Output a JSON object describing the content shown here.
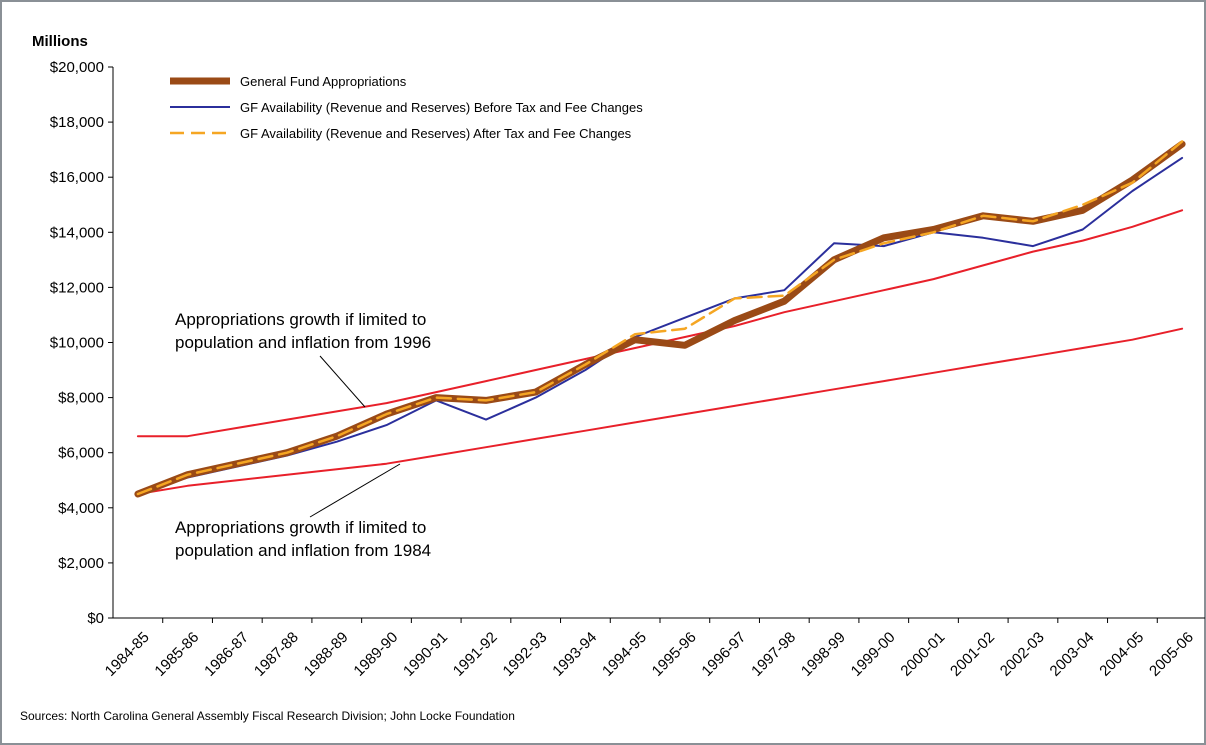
{
  "chart_data": {
    "type": "line",
    "y_label": "Millions",
    "source": "Sources: North Carolina General Assembly Fiscal Research Division; John Locke Foundation",
    "categories": [
      "1984-85",
      "1985-86",
      "1986-87",
      "1987-88",
      "1988-89",
      "1989-90",
      "1990-91",
      "1991-92",
      "1992-93",
      "1993-94",
      "1994-95",
      "1995-96",
      "1996-97",
      "1997-98",
      "1998-99",
      "1999-00",
      "2000-01",
      "2001-02",
      "2002-03",
      "2003-04",
      "2004-05",
      "2005-06"
    ],
    "series": [
      {
        "color": "#e8202a",
        "values": [
          6600,
          6600,
          6900,
          7200,
          7500,
          7800,
          8200,
          8600,
          9000,
          9400,
          9800,
          10200,
          10600,
          11100,
          11500,
          11900,
          12300,
          12800,
          13300,
          13700,
          14200,
          14800
        ]
      },
      {
        "color": "#e8202a",
        "values": [
          4500,
          4800,
          5000,
          5200,
          5400,
          5600,
          5900,
          6200,
          6500,
          6800,
          7100,
          7400,
          7700,
          8000,
          8300,
          8600,
          8900,
          9200,
          9500,
          9800,
          10100,
          10500
        ]
      },
      {
        "name": "GF Availability (Revenue and Reserves) Before Tax and Fee Changes",
        "color": "#2b2f9c",
        "values": [
          4500,
          5100,
          5500,
          5900,
          6400,
          7000,
          7900,
          7200,
          8000,
          9000,
          10200,
          10900,
          11600,
          11900,
          13600,
          13500,
          14000,
          13800,
          13500,
          14100,
          15500,
          16700
        ]
      },
      {
        "name": "General Fund Appropriations",
        "color": "#9a4a16",
        "values": [
          4500,
          5200,
          5600,
          6000,
          6600,
          7400,
          8000,
          7900,
          8200,
          9200,
          10100,
          9900,
          10800,
          11500,
          13000,
          13800,
          14100,
          14600,
          14400,
          14800,
          15900,
          17200
        ]
      },
      {
        "name": "GF Availability (Revenue and Reserves) After Tax and Fee Changes",
        "color": "#f5a623",
        "values": [
          4500,
          5200,
          5600,
          6000,
          6600,
          7400,
          8000,
          7900,
          8200,
          9200,
          10300,
          10500,
          11600,
          11700,
          13000,
          13600,
          14000,
          14600,
          14400,
          15000,
          15800,
          17300
        ]
      }
    ],
    "ylim": [
      0,
      20000
    ],
    "yticks": [
      {
        "value": 0,
        "label": "$0"
      },
      {
        "value": 2000,
        "label": "$2,000"
      },
      {
        "value": 4000,
        "label": "$4,000"
      },
      {
        "value": 6000,
        "label": "$6,000"
      },
      {
        "value": 8000,
        "label": "$8,000"
      },
      {
        "value": 10000,
        "label": "$10,000"
      },
      {
        "value": 12000,
        "label": "$12,000"
      },
      {
        "value": 14000,
        "label": "$14,000"
      },
      {
        "value": 16000,
        "label": "$16,000"
      },
      {
        "value": 18000,
        "label": "$18,000"
      },
      {
        "value": 20000,
        "label": "$20,000"
      }
    ],
    "legend": "upper left",
    "annotations": [
      [
        "Appropriations growth if limited to",
        "population and inflation from 1996"
      ],
      [
        "Appropriations growth if limited to",
        "population and inflation from 1984"
      ]
    ]
  }
}
